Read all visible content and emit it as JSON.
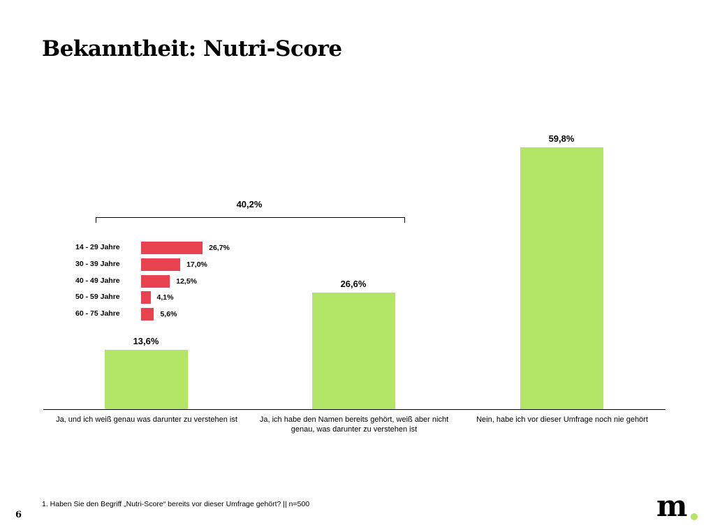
{
  "title": "Bekanntheit: Nutri-Score",
  "chart_data": [
    {
      "type": "bar",
      "categories": [
        "Ja, und ich weiß genau was darunter zu verstehen ist",
        "Ja, ich habe den Namen bereits gehört, weiß aber nicht genau, was darunter zu verstehen ist",
        "Nein, habe ich vor dieser Umfrage noch nie gehört"
      ],
      "values": [
        13.6,
        26.6,
        59.8
      ],
      "labels": [
        "13,6%",
        "26,6%",
        "59,8%"
      ],
      "color": "#b3e567",
      "ylim": [
        0,
        60
      ],
      "bracket": {
        "label": "40,2%",
        "spans_categories": [
          0,
          1
        ]
      }
    },
    {
      "type": "bar",
      "orientation": "horizontal",
      "categories": [
        "14 - 29 Jahre",
        "30 - 39 Jahre",
        "40 - 49 Jahre",
        "50 - 59 Jahre",
        "60 - 75 Jahre"
      ],
      "values": [
        26.7,
        17.0,
        12.5,
        4.1,
        5.6
      ],
      "labels": [
        "26,7%",
        "17,0%",
        "12,5%",
        "4,1%",
        "5,6%"
      ],
      "color": "#e84150"
    }
  ],
  "footnote": "1. Haben Sie den Begriff „Nutri-Score“ bereits vor dieser Umfrage gehört? || n=500",
  "page_number": "6",
  "logo": "m."
}
